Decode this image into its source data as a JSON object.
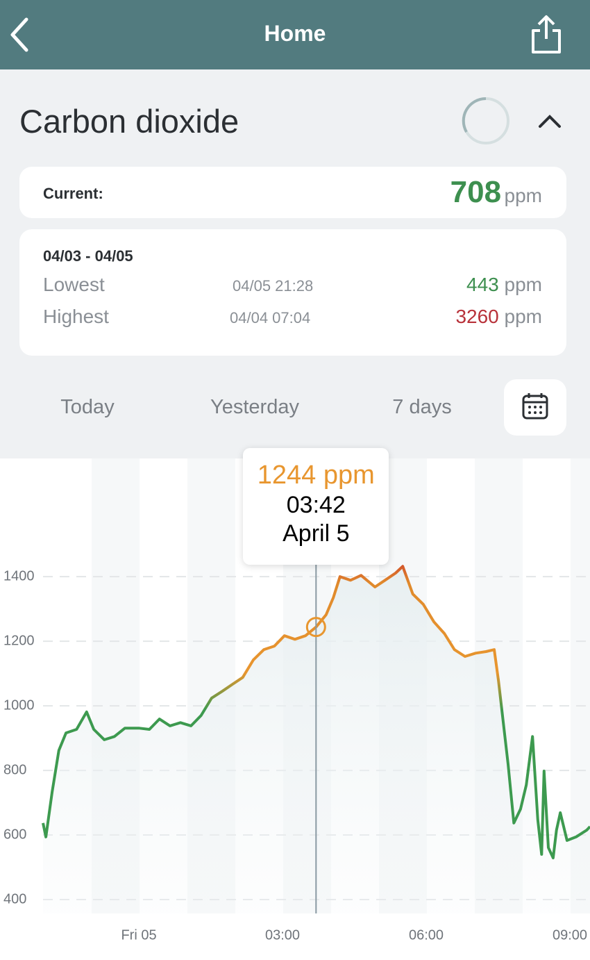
{
  "header": {
    "title": "Home"
  },
  "sensor": {
    "name": "Carbon dioxide"
  },
  "current": {
    "label": "Current:",
    "value": 708,
    "unit": "ppm"
  },
  "range": {
    "dates": "04/03 - 04/05",
    "lowest": {
      "label": "Lowest",
      "time": "04/05 21:28",
      "value": 443,
      "unit": "ppm"
    },
    "highest": {
      "label": "Highest",
      "time": "04/04 07:04",
      "value": 3260,
      "unit": "ppm"
    }
  },
  "tabs": [
    "Today",
    "Yesterday",
    "7 days"
  ],
  "chart_data": {
    "type": "line",
    "x": [
      -2.0,
      -1.94,
      -1.81,
      -1.67,
      -1.52,
      -1.3,
      -1.09,
      -0.94,
      -0.72,
      -0.51,
      -0.29,
      0,
      0.22,
      0.43,
      0.65,
      0.87,
      1.09,
      1.3,
      1.52,
      1.74,
      1.96,
      2.17,
      2.39,
      2.61,
      2.83,
      3.04,
      3.26,
      3.48,
      3.7,
      3.91,
      4.06,
      4.2,
      4.42,
      4.64,
      4.93,
      5.14,
      5.36,
      5.51,
      5.72,
      5.94,
      6.16,
      6.38,
      6.59,
      6.81,
      7.03,
      7.25,
      7.42,
      7.51,
      7.61,
      7.71,
      7.83,
      7.97,
      8.09,
      8.22,
      8.33,
      8.41,
      8.46,
      8.55,
      8.65,
      8.72,
      8.8,
      8.94,
      9.13,
      9.35,
      9.42
    ],
    "series": [
      {
        "name": "Carbon dioxide",
        "color": "#3d9a4f",
        "values": [
          637,
          594,
          733,
          862,
          916,
          927,
          981,
          927,
          895,
          905,
          931,
          931,
          927,
          959,
          938,
          948,
          938,
          970,
          1024,
          1045,
          1067,
          1088,
          1142,
          1174,
          1185,
          1217,
          1206,
          1217,
          1244,
          1282,
          1335,
          1400,
          1389,
          1404,
          1368,
          1389,
          1411,
          1432,
          1346,
          1314,
          1260,
          1224,
          1174,
          1153,
          1163,
          1168,
          1174,
          1077,
          948,
          819,
          637,
          680,
          755,
          905,
          647,
          540,
          798,
          561,
          529,
          615,
          669,
          583,
          594,
          615,
          626
        ]
      }
    ],
    "xlim": [
      -2.0,
      9.42
    ],
    "xticks": [
      {
        "value": 0,
        "label": "Fri 05"
      },
      {
        "value": 3,
        "label": "03:00"
      },
      {
        "value": 6,
        "label": "06:00"
      },
      {
        "value": 9,
        "label": "09:00"
      }
    ],
    "ylim": [
      357,
      1766
    ],
    "yticks": [
      400,
      600,
      800,
      1000,
      1200,
      1400
    ],
    "grid": true,
    "tooltip": {
      "x": 3.7,
      "value": 1244,
      "value_label": "1244 ppm",
      "time": "03:42",
      "date": "April 5"
    }
  }
}
